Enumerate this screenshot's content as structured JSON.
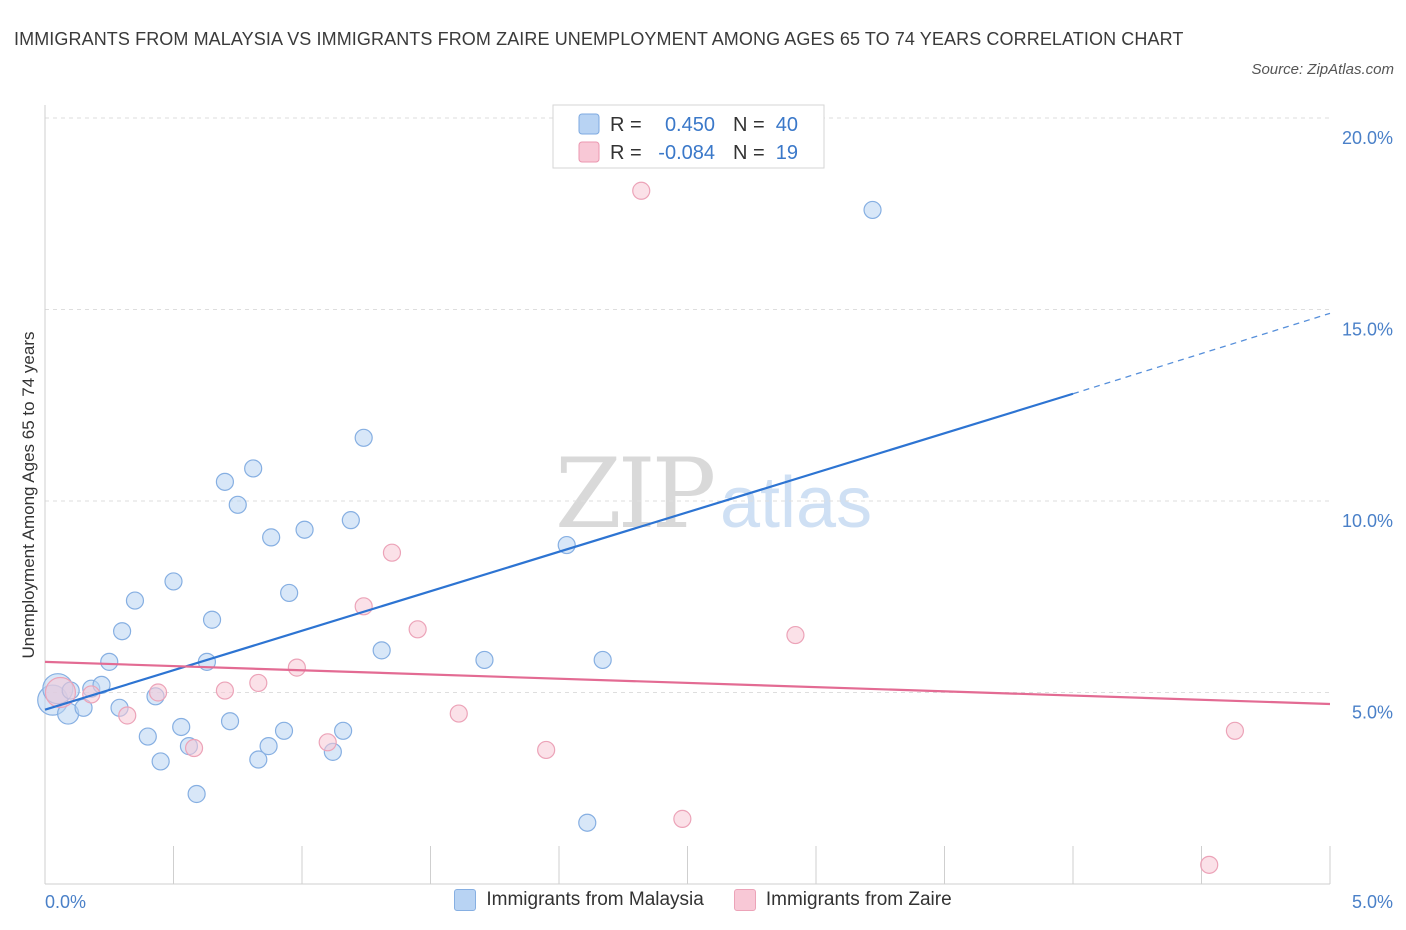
{
  "title": "IMMIGRANTS FROM MALAYSIA VS IMMIGRANTS FROM ZAIRE UNEMPLOYMENT AMONG AGES 65 TO 74 YEARS CORRELATION CHART",
  "source": "Source: ZipAtlas.com",
  "watermark": {
    "zip": "ZIP",
    "atlas": "atlas"
  },
  "legend_top": [
    {
      "r_label": "R =",
      "r_value": "0.450",
      "n_label": "N =",
      "n_value": "40",
      "fill": "#b8d3f3",
      "stroke": "#7eaae0"
    },
    {
      "r_label": "R =",
      "r_value": "-0.084",
      "n_label": "N =",
      "n_value": "19",
      "fill": "#f8c8d6",
      "stroke": "#eb97b0"
    }
  ],
  "colors": {
    "malaysia_fill": "#b8d3f3",
    "malaysia_stroke": "#86afe2",
    "malaysia_line": "#2d74d2",
    "zaire_fill": "#f8c8d6",
    "zaire_stroke": "#eca3b8",
    "zaire_line": "#e36b93",
    "value_text": "#3a78c9"
  },
  "chart_data": {
    "type": "scatter",
    "title": "IMMIGRANTS FROM MALAYSIA VS IMMIGRANTS FROM ZAIRE UNEMPLOYMENT AMONG AGES 65 TO 74 YEARS CORRELATION CHART",
    "xlabel": "",
    "ylabel": "Unemployment Among Ages 65 to 74 years",
    "xlim": [
      0,
      5
    ],
    "ylim": [
      0,
      20
    ],
    "x_tick_labels": [
      {
        "value": 0,
        "label": "0.0%"
      },
      {
        "value": 5,
        "label": "5.0%"
      }
    ],
    "y_tick_labels": [
      {
        "value": 5,
        "label": "5.0%"
      },
      {
        "value": 10,
        "label": "10.0%"
      },
      {
        "value": 15,
        "label": "15.0%"
      },
      {
        "value": 20,
        "label": "20.0%"
      }
    ],
    "series": [
      {
        "name": "Immigrants from Malaysia",
        "r": 0.45,
        "n": 40,
        "trend": {
          "x0": 0.0,
          "y0": 4.55,
          "x1": 4.0,
          "y1": 12.8,
          "dashed_to_x": 5.0,
          "dashed_to_y": 14.9
        },
        "points": [
          [
            0.03,
            4.8,
            "l"
          ],
          [
            0.05,
            5.1,
            "l"
          ],
          [
            0.09,
            4.45,
            "m"
          ],
          [
            0.1,
            5.05,
            "s"
          ],
          [
            0.15,
            4.6,
            "s"
          ],
          [
            0.18,
            5.1,
            "s"
          ],
          [
            0.22,
            5.2,
            "s"
          ],
          [
            0.25,
            5.8,
            "s"
          ],
          [
            0.29,
            4.6,
            "s"
          ],
          [
            0.3,
            6.6,
            "s"
          ],
          [
            0.35,
            7.4,
            "s"
          ],
          [
            0.4,
            3.85,
            "s"
          ],
          [
            0.43,
            4.9,
            "s"
          ],
          [
            0.45,
            3.2,
            "s"
          ],
          [
            0.5,
            7.9,
            "s"
          ],
          [
            0.53,
            4.1,
            "s"
          ],
          [
            0.56,
            3.6,
            "s"
          ],
          [
            0.59,
            2.35,
            "s"
          ],
          [
            0.63,
            5.8,
            "s"
          ],
          [
            0.65,
            6.9,
            "s"
          ],
          [
            0.7,
            10.5,
            "s"
          ],
          [
            0.72,
            4.25,
            "s"
          ],
          [
            0.75,
            9.9,
            "s"
          ],
          [
            0.81,
            10.85,
            "s"
          ],
          [
            0.83,
            3.25,
            "s"
          ],
          [
            0.87,
            3.6,
            "s"
          ],
          [
            0.88,
            9.05,
            "s"
          ],
          [
            0.93,
            4.0,
            "s"
          ],
          [
            0.95,
            7.6,
            "s"
          ],
          [
            1.01,
            9.25,
            "s"
          ],
          [
            1.12,
            3.45,
            "s"
          ],
          [
            1.16,
            4.0,
            "s"
          ],
          [
            1.19,
            9.5,
            "s"
          ],
          [
            1.24,
            11.65,
            "s"
          ],
          [
            1.31,
            6.1,
            "s"
          ],
          [
            1.71,
            5.85,
            "s"
          ],
          [
            2.03,
            8.85,
            "s"
          ],
          [
            2.11,
            1.6,
            "s"
          ],
          [
            2.17,
            5.85,
            "s"
          ],
          [
            3.22,
            17.6,
            "s"
          ]
        ]
      },
      {
        "name": "Immigrants from Zaire",
        "r": -0.084,
        "n": 19,
        "trend": {
          "x0": 0.0,
          "y0": 5.8,
          "x1": 5.0,
          "y1": 4.7
        },
        "points": [
          [
            0.06,
            5.0,
            "l"
          ],
          [
            0.18,
            4.95,
            "s"
          ],
          [
            0.32,
            4.4,
            "s"
          ],
          [
            0.44,
            5.0,
            "s"
          ],
          [
            0.58,
            3.55,
            "s"
          ],
          [
            0.7,
            5.05,
            "s"
          ],
          [
            0.83,
            5.25,
            "s"
          ],
          [
            0.98,
            5.65,
            "s"
          ],
          [
            1.1,
            3.7,
            "s"
          ],
          [
            1.24,
            7.25,
            "s"
          ],
          [
            1.35,
            8.65,
            "s"
          ],
          [
            1.45,
            6.65,
            "s"
          ],
          [
            1.61,
            4.45,
            "s"
          ],
          [
            1.95,
            3.5,
            "s"
          ],
          [
            2.32,
            18.1,
            "s"
          ],
          [
            2.48,
            1.7,
            "s"
          ],
          [
            2.92,
            6.5,
            "s"
          ],
          [
            4.53,
            0.5,
            "s"
          ],
          [
            4.63,
            4.0,
            "s"
          ]
        ]
      }
    ]
  },
  "bottom_legend": [
    "Immigrants from Malaysia",
    "Immigrants from Zaire"
  ]
}
